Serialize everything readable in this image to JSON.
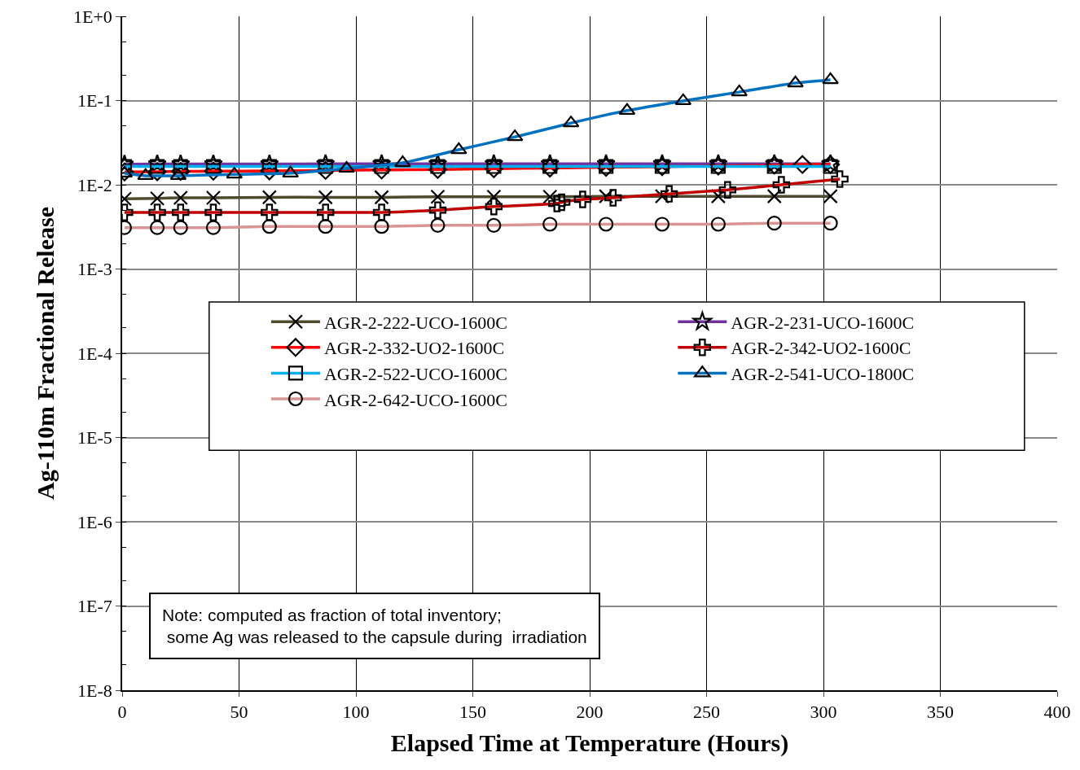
{
  "chart_data": {
    "type": "line",
    "xlabel": "Elapsed Time at Temperature (Hours)",
    "ylabel": "Ag-110m Fractional Release",
    "log": "y",
    "grid": true,
    "legend": "center",
    "line_style": "solid",
    "xlim": [
      0,
      400
    ],
    "xticks": [
      0,
      50,
      100,
      150,
      200,
      250,
      300,
      350,
      400
    ],
    "ylim": [
      1e-08,
      1
    ],
    "yticks": [
      {
        "value": 1,
        "label": "1E+0"
      },
      {
        "value": 0.1,
        "label": "1E-1"
      },
      {
        "value": 0.01,
        "label": "1E-2"
      },
      {
        "value": 0.001,
        "label": "1E-3"
      },
      {
        "value": 0.0001,
        "label": "1E-4"
      },
      {
        "value": 1e-05,
        "label": "1E-5"
      },
      {
        "value": 1e-06,
        "label": "1E-6"
      },
      {
        "value": 1e-07,
        "label": "1E-7"
      },
      {
        "value": 1e-08,
        "label": "1E-8"
      }
    ],
    "x": [
      1,
      15,
      25,
      39,
      63,
      87,
      111,
      135,
      159,
      183,
      207,
      231,
      255,
      279,
      303
    ],
    "series": [
      {
        "name": "AGR-2-222-UCO-1600C",
        "color": "#4d4a2e",
        "marker": "x",
        "values": [
          0.0068,
          0.0069,
          0.007,
          0.007,
          0.0071,
          0.0071,
          0.0071,
          0.0072,
          0.0072,
          0.0072,
          0.0073,
          0.0073,
          0.0073,
          0.0073,
          0.0073
        ]
      },
      {
        "name": "AGR-2-231-UCO-1600C",
        "color": "#7030a0",
        "marker": "star",
        "values": [
          0.0175,
          0.0176,
          0.0176,
          0.0176,
          0.0176,
          0.0177,
          0.0177,
          0.0177,
          0.0177,
          0.0177,
          0.0177,
          0.0177,
          0.0177,
          0.0177,
          0.0177
        ]
      },
      {
        "name": "AGR-2-332-UO2-1600C",
        "color": "#ff0000",
        "marker": "diamond",
        "x": [
          1,
          15,
          25,
          39,
          63,
          87,
          111,
          135,
          159,
          183,
          207,
          231,
          255,
          279,
          291,
          303
        ],
        "values": [
          0.0142,
          0.0143,
          0.0144,
          0.0145,
          0.0146,
          0.0148,
          0.015,
          0.0152,
          0.0155,
          0.0158,
          0.0161,
          0.0164,
          0.0167,
          0.0171,
          0.0174,
          0.0174
        ]
      },
      {
        "name": "AGR-2-342-UO2-1600C",
        "color": "#c00000",
        "marker": "cross",
        "x": [
          1,
          15,
          25,
          39,
          63,
          87,
          111,
          135,
          159,
          186,
          188,
          197,
          210,
          234,
          259,
          282,
          307
        ],
        "values": [
          0.0047,
          0.0047,
          0.0047,
          0.0047,
          0.0047,
          0.0047,
          0.0047,
          0.005,
          0.0055,
          0.006,
          0.0062,
          0.0067,
          0.007,
          0.0078,
          0.0087,
          0.01,
          0.0117
        ]
      },
      {
        "name": "AGR-2-522-UCO-1600C",
        "color": "#00b0f0",
        "marker": "square",
        "values": [
          0.0165,
          0.0165,
          0.0165,
          0.0165,
          0.0165,
          0.0165,
          0.0165,
          0.0165,
          0.0165,
          0.0165,
          0.0165,
          0.0165,
          0.0165,
          0.0165,
          0.0165
        ]
      },
      {
        "name": "AGR-2-541-UCO-1800C",
        "color": "#0070c0",
        "marker": "triangle",
        "x": [
          1,
          10,
          24,
          48,
          72,
          96,
          120,
          144,
          168,
          192,
          216,
          240,
          264,
          288,
          303
        ],
        "values": [
          0.0137,
          0.0128,
          0.0128,
          0.0133,
          0.0137,
          0.0156,
          0.0182,
          0.026,
          0.037,
          0.054,
          0.076,
          0.099,
          0.126,
          0.161,
          0.176
        ]
      },
      {
        "name": "AGR-2-642-UCO-1600C",
        "color": "#d99594",
        "marker": "circle",
        "values": [
          0.0031,
          0.0031,
          0.0031,
          0.0031,
          0.0032,
          0.0032,
          0.0032,
          0.0033,
          0.0033,
          0.0034,
          0.0034,
          0.0034,
          0.0034,
          0.0035,
          0.0035
        ]
      }
    ],
    "annotations": [
      "Note: computed as fraction of total inventory;\n some Ag was released to the capsule during  irradiation"
    ]
  }
}
